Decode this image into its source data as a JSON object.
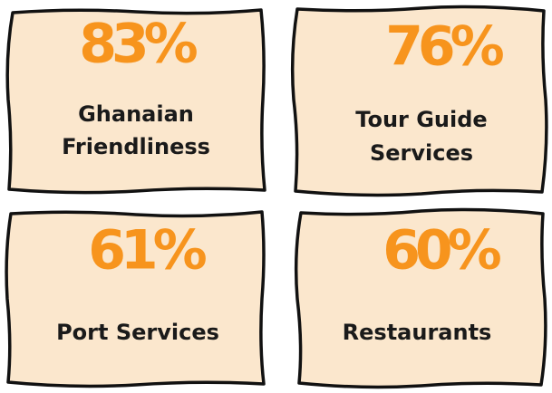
{
  "cards": [
    {
      "value": "83%",
      "label": [
        "Ghanaian",
        "Friendliness"
      ]
    },
    {
      "value": "76%",
      "label": [
        "Tour Guide",
        "Services"
      ]
    },
    {
      "value": "61%",
      "label": [
        "Port Services"
      ]
    },
    {
      "value": "60%",
      "label": [
        "Restaurants"
      ]
    }
  ]
}
